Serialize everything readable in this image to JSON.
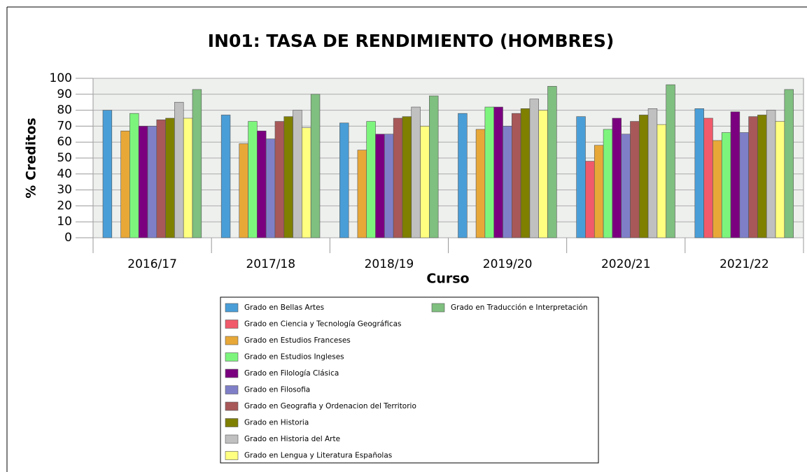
{
  "chart_data": {
    "type": "bar",
    "title": "IN01: TASA DE RENDIMIENTO (HOMBRES)",
    "x_label": "Curso",
    "y_label": "% Creditos",
    "categories": [
      "2016/17",
      "2017/18",
      "2018/19",
      "2019/20",
      "2020/21",
      "2021/22"
    ],
    "series": [
      {
        "name": "Grado en Bellas Artes",
        "color": "#4a9ed8",
        "values": [
          80,
          77,
          72,
          78,
          76,
          81
        ]
      },
      {
        "name": "Grado en Ciencia y Tecnología Geográficas",
        "color": "#f05a6a",
        "values": [
          null,
          null,
          null,
          null,
          48,
          75
        ]
      },
      {
        "name": "Grado en Estudios Franceses",
        "color": "#e8a838",
        "values": [
          67,
          59,
          55,
          68,
          58,
          61
        ]
      },
      {
        "name": "Grado en Estudios Ingleses",
        "color": "#7df57d",
        "values": [
          78,
          73,
          73,
          82,
          68,
          66
        ]
      },
      {
        "name": "Grado en Filología Clásica",
        "color": "#7b0080",
        "values": [
          70,
          67,
          65,
          82,
          75,
          79
        ]
      },
      {
        "name": "Grado en Filosofia",
        "color": "#7f7fc8",
        "values": [
          70,
          62,
          65,
          70,
          65,
          66
        ]
      },
      {
        "name": "Grado en Geografia y Ordenacion del Territorio",
        "color": "#a85858",
        "values": [
          74,
          73,
          75,
          78,
          73,
          76
        ]
      },
      {
        "name": "Grado en Historia",
        "color": "#7f7f00",
        "values": [
          75,
          76,
          76,
          81,
          77,
          77
        ]
      },
      {
        "name": "Grado en Historia del Arte",
        "color": "#c0c0c0",
        "values": [
          85,
          80,
          82,
          87,
          81,
          80
        ]
      },
      {
        "name": "Grado en Lengua y Literatura Españolas",
        "color": "#ffff80",
        "values": [
          75,
          69,
          70,
          80,
          71,
          73
        ]
      },
      {
        "name": "Grado en Traducción e Interpretación",
        "color": "#7fbf7f",
        "values": [
          93,
          90,
          89,
          95,
          96,
          93
        ]
      }
    ],
    "ylim": [
      0,
      100
    ],
    "yticks": [
      0,
      10,
      20,
      30,
      40,
      50,
      60,
      70,
      80,
      90,
      100
    ],
    "grid": true
  }
}
